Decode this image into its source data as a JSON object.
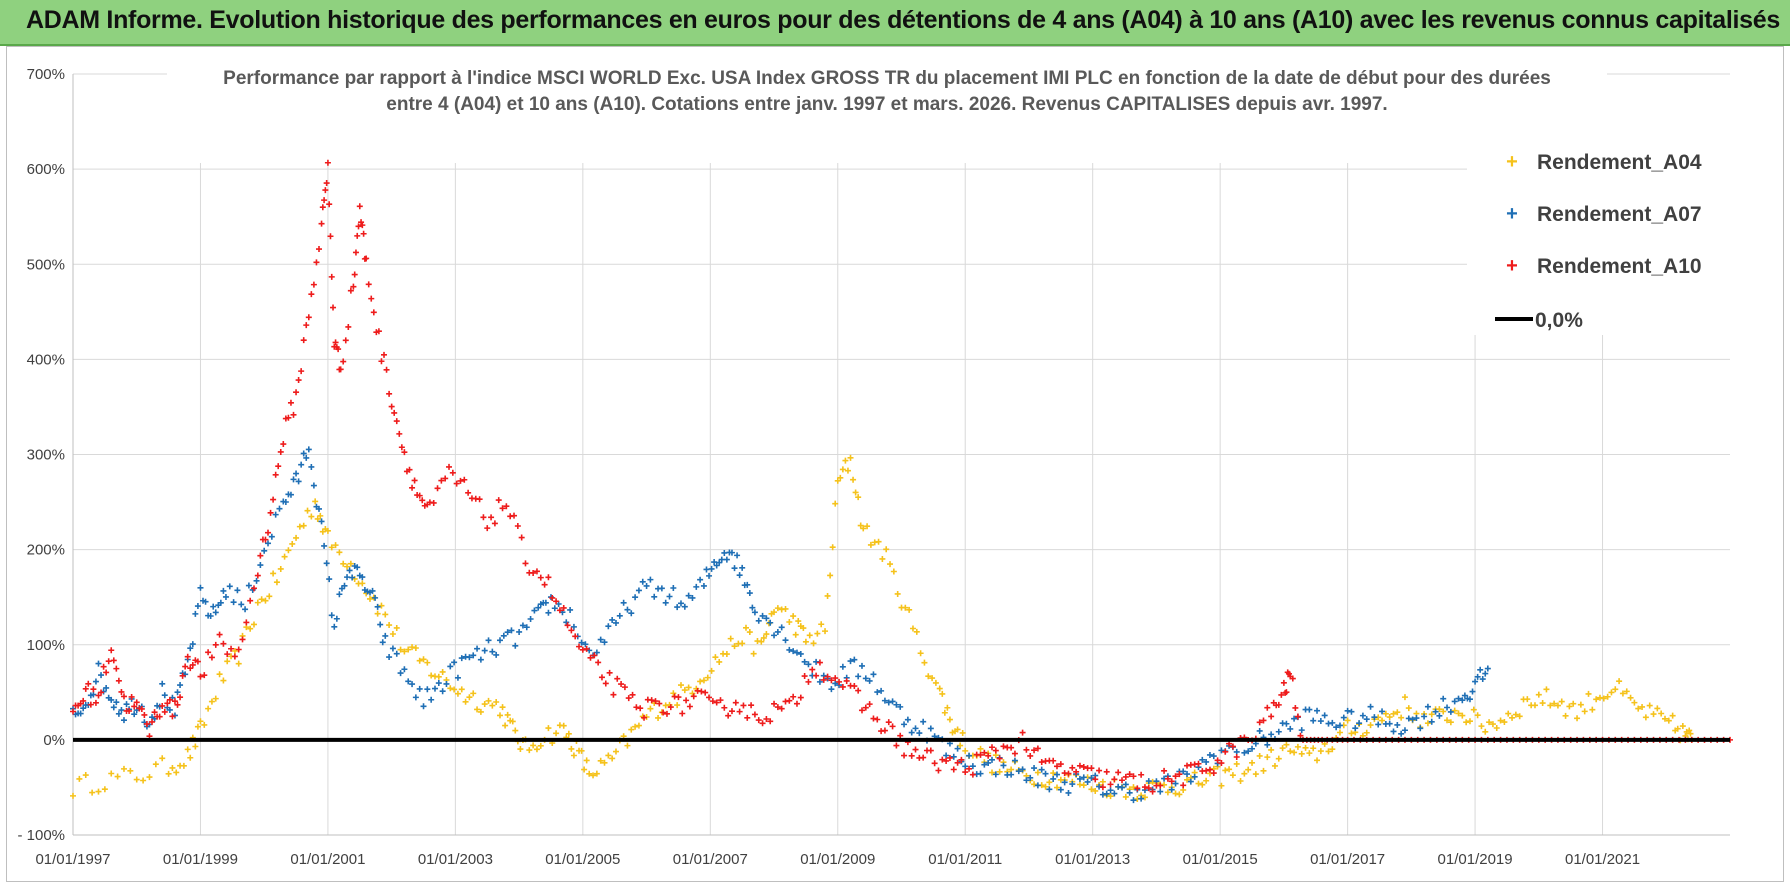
{
  "header": {
    "title": "ADAM Informe. Evolution historique des performances en euros pour des détentions de 4 ans (A04) à 10 ans (A10) avec les revenus connus capitalisés"
  },
  "chart_data": {
    "type": "scatter",
    "title_line1": "Performance par rapport à l'indice MSCI WORLD Exc. USA Index GROSS TR  du placement IMI PLC en fonction de la date de début pour des durées",
    "title_line2": "entre 4 (A04) et 10 ans (A10).  Cotations entre janv. 1997 et mars. 2026. Revenus CAPITALISES depuis avr. 1997.",
    "xlim": [
      1997.0,
      2023.0
    ],
    "ylim": [
      -100,
      700
    ],
    "y_ticks": [
      -100,
      0,
      100,
      200,
      300,
      400,
      500,
      600,
      700
    ],
    "y_tick_labels": [
      "- 100%",
      "0%",
      "100%",
      "200%",
      "300%",
      "400%",
      "500%",
      "600%",
      "700%"
    ],
    "x_ticks": [
      1997,
      1999,
      2001,
      2003,
      2005,
      2007,
      2009,
      2011,
      2013,
      2015,
      2017,
      2019,
      2021
    ],
    "x_tick_labels": [
      "01/01/1997",
      "01/01/1999",
      "01/01/2001",
      "01/01/2003",
      "01/01/2005",
      "01/01/2007",
      "01/01/2009",
      "01/01/2011",
      "01/01/2013",
      "01/01/2015",
      "01/01/2017",
      "01/01/2019",
      "01/01/2021"
    ],
    "grid": true,
    "legend_position": "top-right",
    "series": [
      {
        "name": "Rendement_A04",
        "color": "#f5c21b",
        "marker": "plus",
        "x": [
          1997.0,
          1997.5,
          1998.0,
          1998.5,
          1998.8,
          1999.0,
          1999.3,
          1999.6,
          1999.9,
          2000.2,
          2000.5,
          2000.8,
          2001.0,
          2001.3,
          2001.6,
          2001.9,
          2002.2,
          2002.5,
          2002.8,
          2003.1,
          2003.4,
          2003.7,
          2003.9,
          2004.1,
          2004.4,
          2004.7,
          2004.9,
          2005.1,
          2005.4,
          2005.7,
          2006.0,
          2006.3,
          2006.6,
          2006.9,
          2007.2,
          2007.5,
          2007.8,
          2008.0,
          2008.3,
          2008.5,
          2008.8,
          2009.0,
          2009.2,
          2009.4,
          2009.7,
          2010.0,
          2010.3,
          2010.6,
          2010.8,
          2011.0,
          2011.3,
          2011.6,
          2011.9,
          2012.2,
          2012.5,
          2012.8,
          2013.1,
          2013.4,
          2013.7,
          2014.0,
          2014.3,
          2014.6,
          2014.9,
          2015.2,
          2015.5,
          2015.8,
          2016.1,
          2016.4,
          2016.7,
          2017.0,
          2017.3,
          2017.6,
          2017.9,
          2018.2,
          2018.5,
          2018.8,
          2019.1,
          2019.4,
          2019.7,
          2020.0,
          2020.3,
          2020.6,
          2020.9,
          2021.2,
          2021.5,
          2021.8,
          2022.1,
          2022.3,
          2022.4
        ],
        "y": [
          -50,
          -42,
          -38,
          -28,
          -18,
          10,
          60,
          90,
          140,
          170,
          215,
          250,
          210,
          190,
          160,
          130,
          95,
          80,
          65,
          50,
          40,
          35,
          10,
          -10,
          5,
          10,
          -10,
          -35,
          -25,
          0,
          25,
          40,
          50,
          70,
          90,
          110,
          95,
          140,
          125,
          105,
          115,
          270,
          295,
          220,
          200,
          150,
          95,
          50,
          15,
          -5,
          -20,
          -30,
          -35,
          -38,
          -40,
          -45,
          -48,
          -50,
          -52,
          -50,
          -48,
          -45,
          -40,
          -35,
          -30,
          -20,
          -10,
          -20,
          -5,
          10,
          15,
          25,
          35,
          20,
          25,
          30,
          15,
          20,
          35,
          45,
          40,
          30,
          45,
          55,
          35,
          25,
          15,
          5,
          0
        ]
      },
      {
        "name": "Rendement_A07",
        "color": "#1f6fb5",
        "marker": "plus",
        "x": [
          1997.0,
          1997.2,
          1997.4,
          1997.6,
          1997.8,
          1998.0,
          1998.2,
          1998.4,
          1998.6,
          1998.8,
          1999.0,
          1999.2,
          1999.4,
          1999.7,
          2000.0,
          2000.3,
          2000.5,
          2000.7,
          2000.9,
          2001.1,
          2001.3,
          2001.5,
          2001.7,
          2001.9,
          2002.2,
          2002.5,
          2002.8,
          2003.1,
          2003.4,
          2003.7,
          2004.0,
          2004.3,
          2004.5,
          2004.8,
          2005.1,
          2005.4,
          2005.7,
          2006.0,
          2006.3,
          2006.6,
          2006.9,
          2007.1,
          2007.3,
          2007.5,
          2007.7,
          2008.0,
          2008.3,
          2008.6,
          2008.9,
          2009.2,
          2009.5,
          2009.8,
          2010.1,
          2010.4,
          2010.7,
          2011.0,
          2011.3,
          2011.6,
          2011.9,
          2012.2,
          2012.5,
          2012.8,
          2013.1,
          2013.4,
          2013.7,
          2014.0,
          2014.3,
          2014.6,
          2014.9,
          2015.2,
          2015.5,
          2015.8,
          2016.1,
          2016.4,
          2016.7,
          2017.0,
          2017.3,
          2017.6,
          2017.9,
          2018.2,
          2018.5,
          2018.8,
          2019.0,
          2019.2
        ],
        "y": [
          25,
          40,
          70,
          45,
          30,
          40,
          20,
          50,
          30,
          80,
          150,
          130,
          160,
          140,
          200,
          250,
          270,
          310,
          220,
          120,
          180,
          170,
          150,
          100,
          70,
          40,
          60,
          80,
          90,
          100,
          110,
          130,
          145,
          130,
          90,
          110,
          140,
          160,
          155,
          140,
          165,
          190,
          200,
          175,
          140,
          120,
          100,
          75,
          60,
          75,
          70,
          40,
          20,
          10,
          -10,
          -20,
          -30,
          -25,
          -35,
          -40,
          -45,
          -45,
          -48,
          -55,
          -52,
          -50,
          -45,
          -35,
          -15,
          -10,
          -5,
          5,
          15,
          25,
          20,
          20,
          25,
          20,
          15,
          25,
          35,
          45,
          55,
          75
        ]
      },
      {
        "name": "Rendement_A10",
        "color": "#ee1c1c",
        "marker": "plus",
        "x": [
          1997.0,
          1997.2,
          1997.4,
          1997.6,
          1997.8,
          1998.0,
          1998.2,
          1998.4,
          1998.6,
          1998.8,
          1999.0,
          1999.3,
          1999.6,
          1999.9,
          2000.1,
          2000.3,
          2000.5,
          2000.7,
          2000.9,
          2001.0,
          2001.1,
          2001.2,
          2001.4,
          2001.5,
          2001.6,
          2001.8,
          2002.0,
          2002.2,
          2002.4,
          2002.6,
          2002.9,
          2003.2,
          2003.5,
          2003.8,
          2004.1,
          2004.4,
          2004.7,
          2005.0,
          2005.3,
          2005.6,
          2005.9,
          2006.2,
          2006.5,
          2006.8,
          2007.1,
          2007.4,
          2007.7,
          2008.0,
          2008.3,
          2008.6,
          2008.9,
          2009.2,
          2009.5,
          2009.8,
          2010.1,
          2010.4,
          2010.7,
          2011.0,
          2011.3,
          2011.6,
          2011.9,
          2012.2,
          2012.5,
          2012.8,
          2013.1,
          2013.4,
          2013.7,
          2014.0,
          2014.3,
          2014.6,
          2014.9,
          2015.2,
          2015.5,
          2015.8,
          2016.0,
          2016.1,
          2016.3,
          2016.6,
          2017.0,
          2017.5,
          2018.0,
          2018.5,
          2019.0,
          2019.5,
          2020.0,
          2020.5,
          2021.0,
          2021.5,
          2022.0,
          2022.5,
          2023.0
        ],
        "y": [
          30,
          50,
          45,
          100,
          40,
          35,
          10,
          40,
          30,
          90,
          70,
          100,
          90,
          180,
          240,
          320,
          360,
          450,
          540,
          600,
          420,
          390,
          480,
          560,
          500,
          420,
          360,
          300,
          260,
          240,
          280,
          260,
          230,
          250,
          190,
          170,
          130,
          90,
          70,
          50,
          30,
          40,
          35,
          45,
          30,
          40,
          25,
          30,
          35,
          80,
          70,
          50,
          30,
          10,
          -10,
          -20,
          -25,
          -30,
          -20,
          -10,
          0,
          -25,
          -30,
          -35,
          -40,
          -42,
          -45,
          -45,
          -40,
          -35,
          -25,
          -10,
          0,
          30,
          50,
          70,
          0,
          0,
          0,
          0,
          0,
          0,
          0,
          0,
          0,
          0,
          0,
          0,
          0,
          0,
          0
        ]
      },
      {
        "name": "0,0%",
        "color": "#000000",
        "marker": "line",
        "x": [
          1997.0,
          2023.0
        ],
        "y": [
          0,
          0
        ]
      }
    ]
  }
}
